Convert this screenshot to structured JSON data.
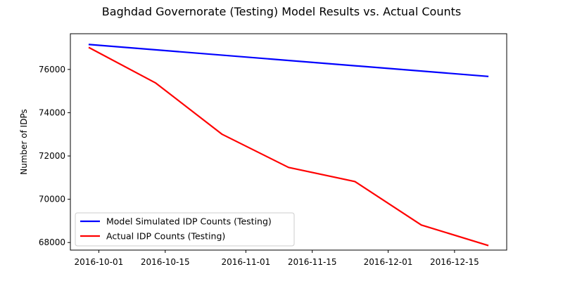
{
  "chart_data": {
    "type": "line",
    "title": "Baghdad Governorate (Testing) Model Results vs. Actual Counts",
    "xlabel": "",
    "ylabel": "Number of IDPs",
    "x_ticks": [
      "2016-10-01",
      "2016-10-15",
      "2016-11-01",
      "2016-11-15",
      "2016-12-01",
      "2016-12-15"
    ],
    "y_ticks": [
      68000,
      70000,
      72000,
      74000,
      76000
    ],
    "xlim": [
      "2016-09-25",
      "2016-12-26"
    ],
    "ylim": [
      67650,
      77650
    ],
    "grid": false,
    "legend_position": "lower-left",
    "series": [
      {
        "name": "Model Simulated IDP Counts (Testing)",
        "color": "#0000ff",
        "x": [
          "2016-09-29",
          "2016-12-22"
        ],
        "y": [
          77150,
          75680
        ]
      },
      {
        "name": "Actual IDP Counts (Testing)",
        "color": "#ff0000",
        "x": [
          "2016-09-29",
          "2016-10-13",
          "2016-10-27",
          "2016-11-10",
          "2016-11-24",
          "2016-12-08",
          "2016-12-22"
        ],
        "y": [
          77000,
          75370,
          73000,
          71470,
          70820,
          68810,
          67870
        ]
      }
    ]
  }
}
